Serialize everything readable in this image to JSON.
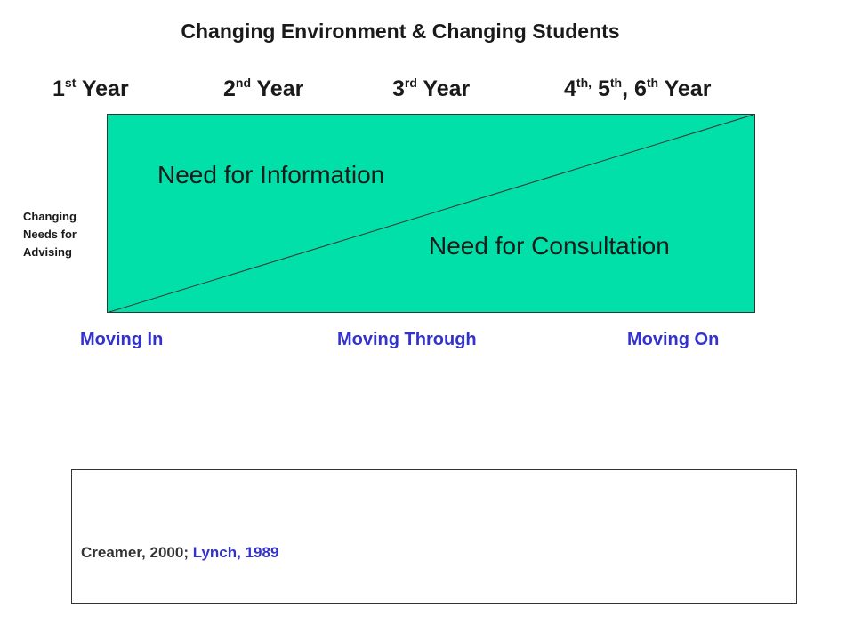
{
  "title": "Changing Environment & Changing Students",
  "years": [
    {
      "num": "1",
      "sup": "st",
      "rest": " Year"
    },
    {
      "num": "2",
      "sup": "nd",
      "rest": " Year"
    },
    {
      "num": "3",
      "sup": "rd",
      "rest": " Year"
    },
    {
      "num": "4",
      "sup": "th,",
      "mid": " 5",
      "sup2": "th",
      "mid2": ", 6",
      "sup3": "th",
      "rest": " Year"
    }
  ],
  "diagram": {
    "upper_label": "Need for  Information",
    "lower_label": "Need for Consultation",
    "fill_color": "#00e0a8",
    "border_color": "#333333"
  },
  "side_label": [
    "Changing",
    "Needs for",
    "Advising"
  ],
  "phases": [
    "Moving In",
    "Moving Through",
    "Moving On"
  ],
  "phase_color": "#3333cc",
  "citation": {
    "part_a": "Creamer,  2000; ",
    "part_b": "Lynch, 1989"
  }
}
